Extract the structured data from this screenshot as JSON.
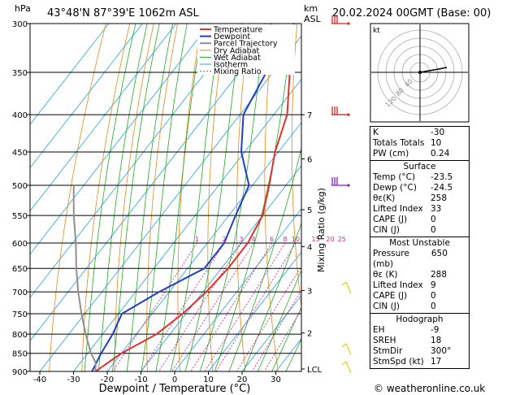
{
  "header": {
    "location": "43°48'N 87°39'E 1062m ASL",
    "datetime": "20.02.2024 00GMT (Base: 00)",
    "hpa_label": "hPa",
    "km_label": "km",
    "asl_label": "ASL"
  },
  "colors": {
    "temperature": "#e03030",
    "dewpoint": "#2040c0",
    "parcel": "#909090",
    "dry_adiabat": "#e08a1a",
    "wet_adiabat": "#22aa22",
    "isotherm": "#22a0e0",
    "mixing_ratio": "#cc2c9c",
    "wind_barb_red": "#e02020",
    "wind_barb_purple": "#8a1ad0",
    "wind_barb_yellow": "#e8d020"
  },
  "chart_data": {
    "type": "skewt",
    "title": "43°48'N 87°39'E 1062m ASL",
    "xlabel": "Dewpoint / Temperature (°C)",
    "ylabel": "Mixing Ratio (g/kg)",
    "pressure_ticks": [
      300,
      350,
      400,
      450,
      500,
      550,
      600,
      650,
      700,
      750,
      800,
      850,
      900
    ],
    "temp_ticks": [
      -40,
      -30,
      -20,
      -10,
      0,
      10,
      20,
      30
    ],
    "km_ticks": [
      {
        "label": "7",
        "p": 400
      },
      {
        "label": "6",
        "p": 460
      },
      {
        "label": "5",
        "p": 540
      },
      {
        "label": "4",
        "p": 607
      },
      {
        "label": "3",
        "p": 697
      },
      {
        "label": "2",
        "p": 797
      },
      {
        "label": "LCL",
        "p": 893
      }
    ],
    "mixing_ratio_labels": [
      "1",
      "2",
      "3",
      "4",
      "6",
      "8",
      "10",
      "15",
      "20",
      "25"
    ],
    "mixing_ratio_values": [
      1,
      2,
      3,
      4,
      6,
      8,
      10,
      15,
      20,
      25
    ],
    "legend": [
      "Temperature",
      "Dewpoint",
      "Parcel Trajectory",
      "Dry Adiabat",
      "Wet Adiabat",
      "Isotherm",
      "Mixing Ratio"
    ],
    "series": [
      {
        "name": "Temperature",
        "points": [
          [
            -23.5,
            900
          ],
          [
            -20,
            850
          ],
          [
            -14,
            800
          ],
          [
            -11,
            750
          ],
          [
            -9,
            700
          ],
          [
            -8,
            650
          ],
          [
            -8,
            600
          ],
          [
            -10,
            550
          ],
          [
            -15,
            500
          ],
          [
            -21,
            450
          ],
          [
            -26,
            400
          ],
          [
            -35,
            350
          ],
          [
            -45,
            300
          ]
        ]
      },
      {
        "name": "Dewpoint",
        "points": [
          [
            -24.5,
            900
          ],
          [
            -26,
            850
          ],
          [
            -27,
            800
          ],
          [
            -29,
            750
          ],
          [
            -23,
            700
          ],
          [
            -15,
            650
          ],
          [
            -15,
            600
          ],
          [
            -18,
            550
          ],
          [
            -21,
            500
          ],
          [
            -31,
            450
          ],
          [
            -39,
            400
          ],
          [
            -42,
            350
          ],
          [
            -52,
            300
          ]
        ]
      },
      {
        "name": "Parcel Trajectory",
        "points": [
          [
            -23.5,
            900
          ],
          [
            -25.5,
            875
          ],
          [
            -29,
            850
          ],
          [
            -35,
            800
          ],
          [
            -41,
            750
          ],
          [
            -47,
            700
          ],
          [
            -53,
            650
          ],
          [
            -59,
            600
          ],
          [
            -66,
            550
          ],
          [
            -73,
            500
          ]
        ]
      }
    ]
  },
  "wind_barbs": [
    {
      "p": 300,
      "color": "red"
    },
    {
      "p": 400,
      "color": "red"
    },
    {
      "p": 500,
      "color": "purple"
    },
    {
      "p": 700,
      "color": "yellow"
    },
    {
      "p": 850,
      "color": "yellow"
    },
    {
      "p": 900,
      "color": "yellow"
    }
  ],
  "hodograph": {
    "unit_label": "kt",
    "ring_labels": [
      "40",
      "80",
      "120"
    ]
  },
  "indices": {
    "top": [
      {
        "label": "K",
        "value": "-30"
      },
      {
        "label": "Totals Totals",
        "value": "10"
      },
      {
        "label": "PW (cm)",
        "value": "0.24"
      }
    ],
    "surface": {
      "title": "Surface",
      "rows": [
        {
          "label": "Temp (°C)",
          "value": "-23.5"
        },
        {
          "label": "Dewp (°C)",
          "value": "-24.5"
        },
        {
          "label": "θε(K)",
          "value": "258"
        },
        {
          "label": "Lifted Index",
          "value": "33"
        },
        {
          "label": "CAPE (J)",
          "value": "0"
        },
        {
          "label": "CIN (J)",
          "value": "0"
        }
      ]
    },
    "most_unstable": {
      "title": "Most Unstable",
      "rows": [
        {
          "label": "Pressure (mb)",
          "value": "650"
        },
        {
          "label": "θε (K)",
          "value": "288"
        },
        {
          "label": "Lifted Index",
          "value": "9"
        },
        {
          "label": "CAPE (J)",
          "value": "0"
        },
        {
          "label": "CIN (J)",
          "value": "0"
        }
      ]
    },
    "hodograph_box": {
      "title": "Hodograph",
      "rows": [
        {
          "label": "EH",
          "value": "-9"
        },
        {
          "label": "SREH",
          "value": "18"
        },
        {
          "label": "StmDir",
          "value": "300°"
        },
        {
          "label": "StmSpd (kt)",
          "value": "17"
        }
      ]
    }
  },
  "footer": {
    "copyright": "© weatheronline.co.uk"
  }
}
